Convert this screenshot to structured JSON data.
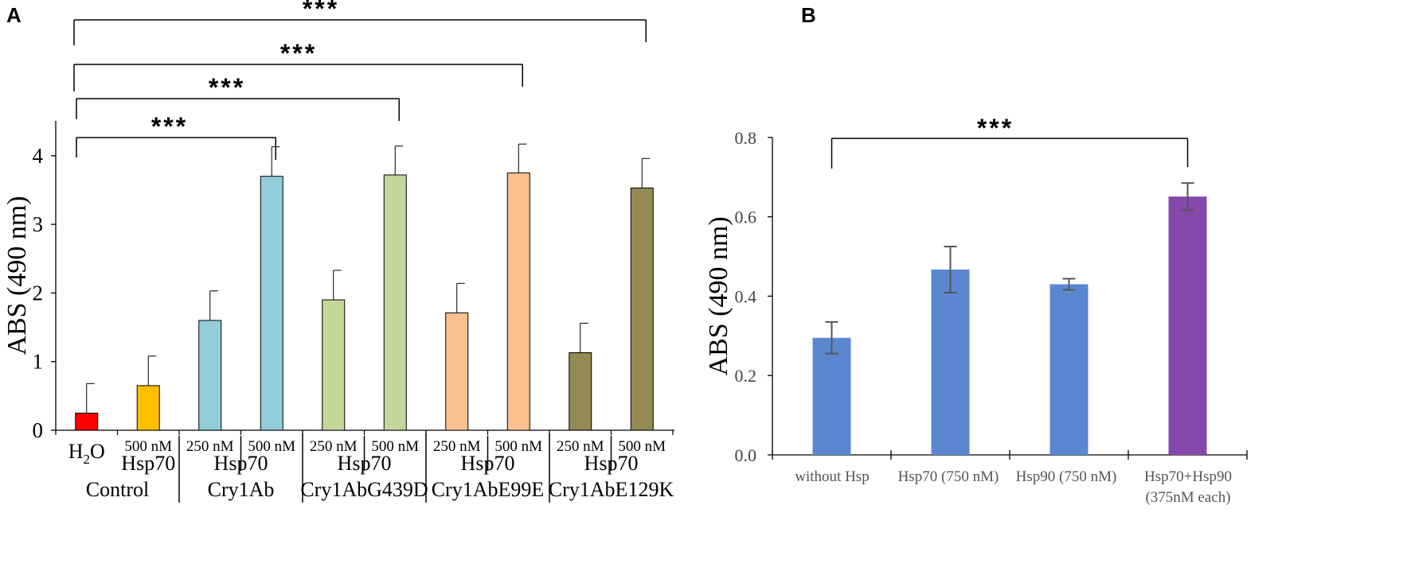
{
  "panels": {
    "a": "A",
    "b": "B"
  },
  "chart_data": [
    {
      "type": "bar",
      "title": "",
      "ylabel": "ABS (490 nm)",
      "xlabel": "",
      "ylim": [
        0,
        4.5
      ],
      "yticks": [
        0,
        1,
        2,
        3,
        4
      ],
      "grid": false,
      "categories": [
        "H2O",
        "Hsp70 500 nM",
        "Cry1Ab 250 nM",
        "Cry1Ab 500 nM",
        "Cry1AbG439D 250 nM",
        "Cry1AbG439D 500 nM",
        "Cry1AbE99E 250 nM",
        "Cry1AbE99E 500 nM",
        "Cry1AbE129K 250 nM",
        "Cry1AbE129K 500 nM"
      ],
      "values": [
        0.25,
        0.65,
        1.6,
        3.7,
        1.9,
        3.72,
        1.71,
        3.75,
        1.13,
        3.53
      ],
      "errors": [
        0.43,
        0.43,
        0.43,
        0.43,
        0.43,
        0.42,
        0.43,
        0.42,
        0.43,
        0.43
      ],
      "colors": [
        "#ff0000",
        "#ffc000",
        "#92cddc",
        "#92cddc",
        "#c4d79b",
        "#c4d79b",
        "#fac090",
        "#fac090",
        "#948a54",
        "#948a54"
      ],
      "conc_labels": [
        "",
        "500 nM",
        "250 nM",
        "500 nM",
        "250 nM",
        "500 nM",
        "250 nM",
        "500 nM",
        "250 nM",
        "500 nM"
      ],
      "h2o_label": {
        "base": "H",
        "sub": "2",
        "tail": "O"
      },
      "groups": [
        {
          "line1": "",
          "line2": "Control",
          "start": 0,
          "end": 1
        },
        {
          "line1": "Hsp70",
          "line2": "",
          "start": 1,
          "end": 1
        },
        {
          "line1": "Hsp70",
          "line2": "Cry1Ab",
          "start": 2,
          "end": 3
        },
        {
          "line1": "Hsp70",
          "line2": "Cry1AbG439D",
          "start": 4,
          "end": 5
        },
        {
          "line1": "Hsp70",
          "line2": "Cry1AbE99E",
          "start": 6,
          "end": 7
        },
        {
          "line1": "Hsp70",
          "line2": "Cry1AbE129K",
          "start": 8,
          "end": 9
        }
      ],
      "significance": [
        {
          "from": 0,
          "to": 3,
          "label": "***"
        },
        {
          "from": 0,
          "to": 5,
          "label": "***"
        },
        {
          "from": 0,
          "to": 7,
          "label": "***"
        },
        {
          "from": 0,
          "to": 9,
          "label": "***"
        }
      ]
    },
    {
      "type": "bar",
      "title": "",
      "ylabel": "ABS (490 nm)",
      "xlabel": "",
      "ylim": [
        0,
        0.8
      ],
      "yticks": [
        "0.0",
        "0.2",
        "0.4",
        "0.6",
        "0.8"
      ],
      "grid": false,
      "categories": [
        "without Hsp",
        "Hsp70 (750 nM)",
        "Hsp90  (750 nM)",
        "Hsp70+Hsp90 (375nM each)"
      ],
      "category_lines": [
        [
          "without Hsp"
        ],
        [
          "Hsp70 (750 nM)"
        ],
        [
          "Hsp90  (750 nM)"
        ],
        [
          "Hsp70+Hsp90",
          "(375nM each)"
        ]
      ],
      "values": [
        0.295,
        0.467,
        0.43,
        0.651
      ],
      "errors": [
        0.04,
        0.058,
        0.014,
        0.034
      ],
      "colors": [
        "#5b87d1",
        "#5b87d1",
        "#5b87d1",
        "#8549ab"
      ],
      "significance": [
        {
          "from": 0,
          "to": 3,
          "label": "***"
        }
      ]
    }
  ]
}
